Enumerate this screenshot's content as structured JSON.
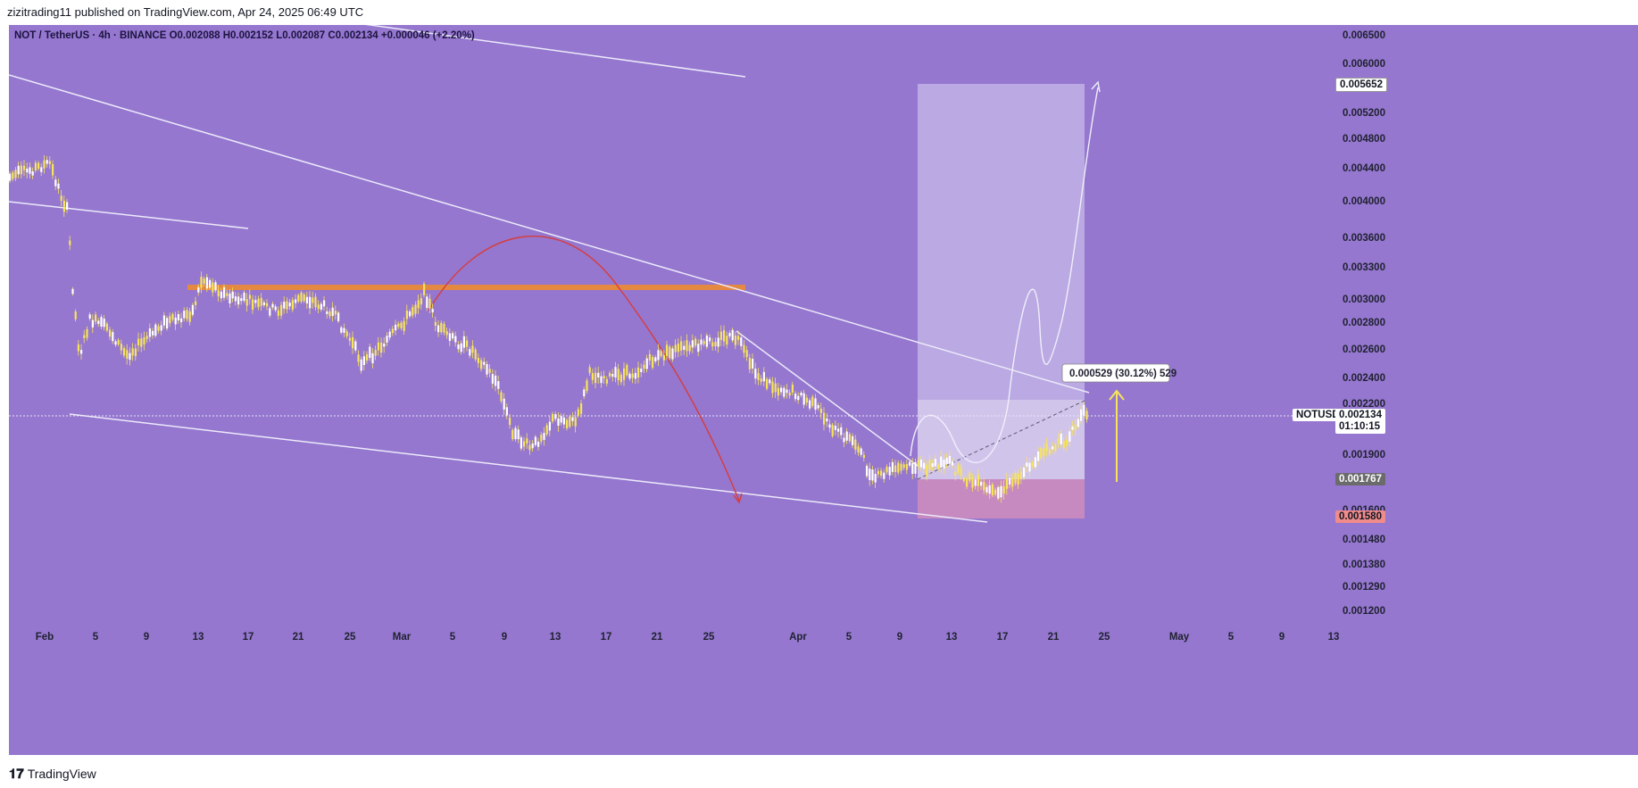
{
  "header": {
    "publisher_line": "zizitrading11 published on TradingView.com, Apr 24, 2025 06:49 UTC"
  },
  "legend": {
    "symbol_line": "NOT / TetherUS · 4h · BINANCE",
    "open": "O0.002088",
    "high": "H0.002152",
    "low": "L0.002087",
    "close": "C0.002134",
    "change": "+0.000046 (+2.20%)"
  },
  "price_axis": {
    "ticks": [
      "0.006500",
      "0.006000",
      "0.005200",
      "0.004800",
      "0.004400",
      "0.004000",
      "0.003600",
      "0.003300",
      "0.003000",
      "0.002800",
      "0.002600",
      "0.002400",
      "0.002200",
      "0.001900",
      "0.001600",
      "0.001480",
      "0.001380",
      "0.001290",
      "0.001200"
    ],
    "target_label": "0.005652",
    "current_symbol": "NOTUSDT",
    "current_price": "0.002134",
    "countdown": "01:10:15",
    "entry_label": "0.001767",
    "stop_label": "0.001580"
  },
  "time_axis": {
    "ticks": [
      "Feb",
      "5",
      "9",
      "13",
      "17",
      "21",
      "25",
      "Mar",
      "5",
      "9",
      "13",
      "17",
      "21",
      "25",
      "Apr",
      "5",
      "9",
      "13",
      "17",
      "21",
      "25",
      "May",
      "5",
      "9",
      "13"
    ]
  },
  "measure_tooltip": "0.000529 (30.12%) 529",
  "footer": {
    "brand": "TradingView"
  },
  "colors": {
    "background": "#9577cf",
    "candles": "#f7e45a",
    "trendlines": "#e8e6f8",
    "resistance_band": "#e88a3a",
    "projection_arrow": "#d63c3c",
    "target_zone": "#c4b5e6",
    "stop_zone": "#cc8bbf"
  }
}
